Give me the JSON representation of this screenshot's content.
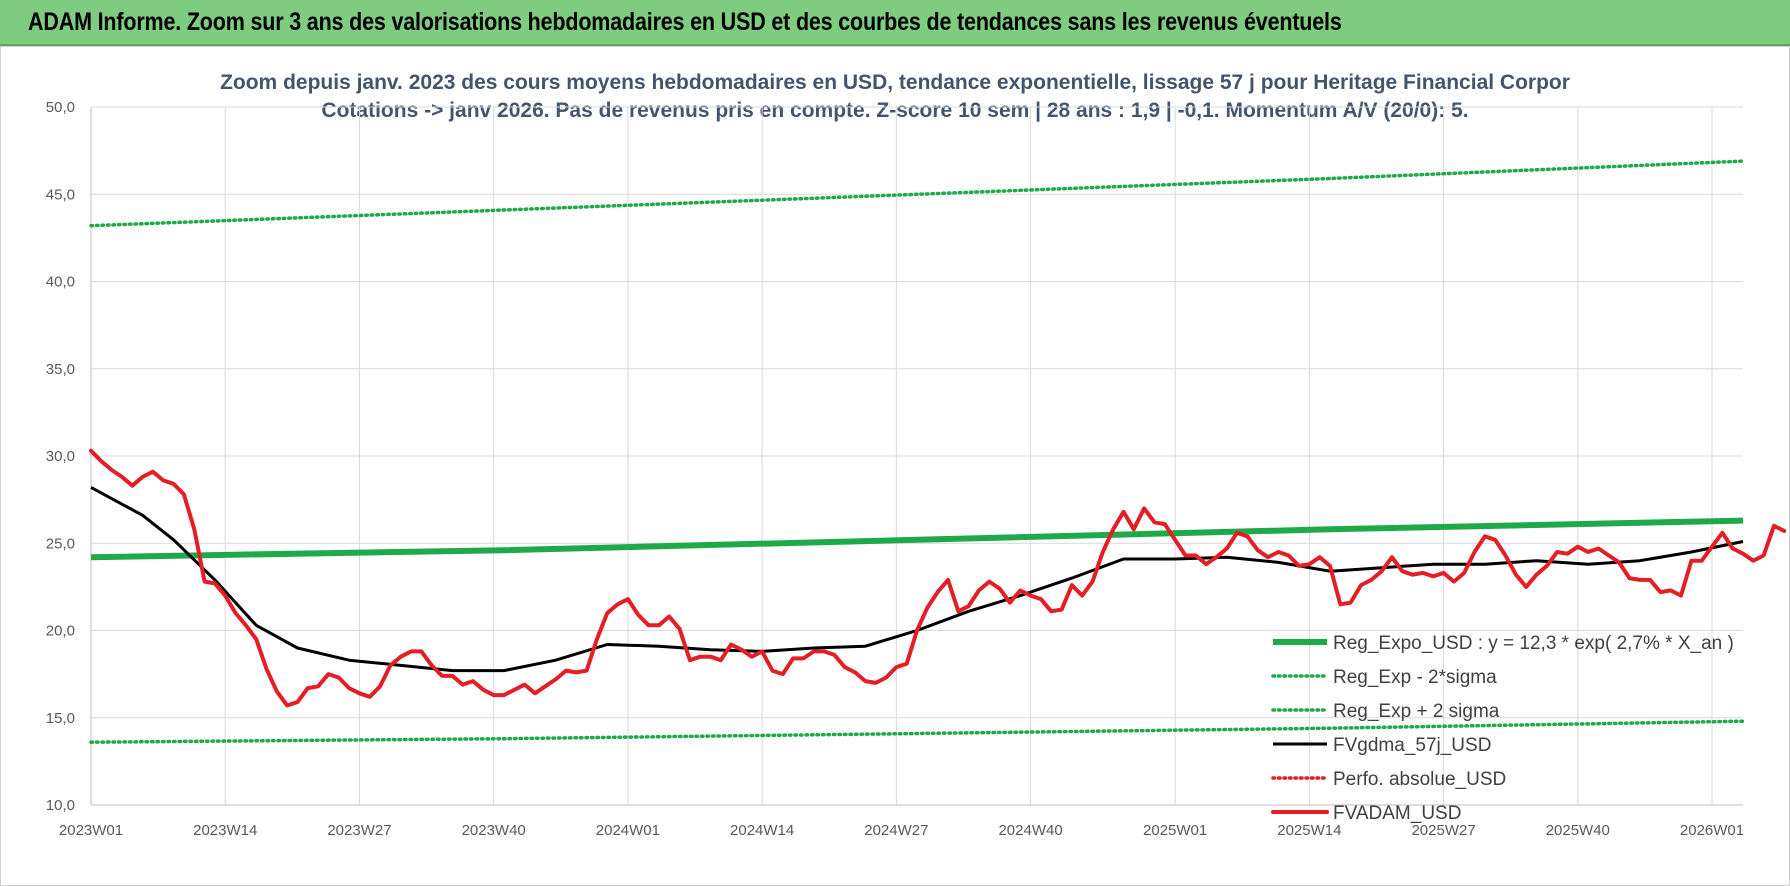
{
  "header": {
    "title": "ADAM Informe. Zoom sur 3 ans des valorisations hebdomadaires en USD et des courbes de tendances sans les revenus éventuels"
  },
  "chart_data": {
    "type": "line",
    "title_lines": [
      "Zoom depuis janv. 2023 des cours moyens hebdomadaires en USD, tendance exponentielle, lissage 57 j pour Heritage Financial Corpor",
      "Cotations -> janv 2026. Pas de revenus pris en compte. Z-score 10 sem | 28 ans : 1,9 | -0,1. Momentum A/V (20/0): 5."
    ],
    "ylim": [
      10,
      50
    ],
    "y_ticks": [
      "50,0",
      "45,0",
      "40,0",
      "35,0",
      "30,0",
      "25,0",
      "20,0",
      "15,0",
      "10,0"
    ],
    "y_tick_values": [
      50,
      45,
      40,
      35,
      30,
      25,
      20,
      15,
      10
    ],
    "x_range": [
      0,
      160
    ],
    "x_ticks": [
      {
        "label": "2023W01",
        "x": 0
      },
      {
        "label": "2023W14",
        "x": 13
      },
      {
        "label": "2023W27",
        "x": 26
      },
      {
        "label": "2023W40",
        "x": 39
      },
      {
        "label": "2024W01",
        "x": 52
      },
      {
        "label": "2024W14",
        "x": 65
      },
      {
        "label": "2024W27",
        "x": 78
      },
      {
        "label": "2024W40",
        "x": 91
      },
      {
        "label": "2025W01",
        "x": 105
      },
      {
        "label": "2025W14",
        "x": 118
      },
      {
        "label": "2025W27",
        "x": 131
      },
      {
        "label": "2025W40",
        "x": 144
      },
      {
        "label": "2026W01",
        "x": 157
      }
    ],
    "grid": true,
    "legend_position": "right",
    "series": [
      {
        "name": "Reg_Expo_USD : y = 12,3 * exp( 2,7% *  X_an )",
        "color": "#1faa4a",
        "style": "thick",
        "points": [
          [
            0,
            24.2
          ],
          [
            40,
            24.6
          ],
          [
            80,
            25.2
          ],
          [
            120,
            25.8
          ],
          [
            160,
            26.3
          ]
        ]
      },
      {
        "name": "Reg_Exp - 2*sigma",
        "color": "#1faa4a",
        "style": "dotted",
        "points": [
          [
            0,
            13.6
          ],
          [
            40,
            13.8
          ],
          [
            80,
            14.1
          ],
          [
            120,
            14.4
          ],
          [
            160,
            14.8
          ]
        ]
      },
      {
        "name": "Reg_Exp + 2 sigma",
        "color": "#1faa4a",
        "style": "dotted",
        "points": [
          [
            0,
            43.2
          ],
          [
            40,
            44.1
          ],
          [
            80,
            45.0
          ],
          [
            120,
            45.9
          ],
          [
            160,
            46.9
          ]
        ]
      },
      {
        "name": "FVgdma_57j_USD",
        "color": "#000000",
        "style": "solid",
        "points": [
          [
            0,
            28.2
          ],
          [
            5,
            26.6
          ],
          [
            8,
            25.2
          ],
          [
            12,
            22.9
          ],
          [
            16,
            20.3
          ],
          [
            20,
            19.0
          ],
          [
            25,
            18.3
          ],
          [
            30,
            18.0
          ],
          [
            35,
            17.7
          ],
          [
            40,
            17.7
          ],
          [
            45,
            18.3
          ],
          [
            50,
            19.2
          ],
          [
            55,
            19.1
          ],
          [
            60,
            18.9
          ],
          [
            65,
            18.8
          ],
          [
            70,
            19.0
          ],
          [
            75,
            19.1
          ],
          [
            80,
            20.0
          ],
          [
            85,
            21.1
          ],
          [
            90,
            22.0
          ],
          [
            95,
            23.0
          ],
          [
            100,
            24.1
          ],
          [
            105,
            24.1
          ],
          [
            110,
            24.2
          ],
          [
            115,
            23.9
          ],
          [
            120,
            23.4
          ],
          [
            125,
            23.6
          ],
          [
            130,
            23.8
          ],
          [
            135,
            23.8
          ],
          [
            140,
            24.0
          ],
          [
            145,
            23.8
          ],
          [
            150,
            24.0
          ],
          [
            155,
            24.5
          ],
          [
            160,
            25.1
          ]
        ]
      },
      {
        "name": "Perfo. absolue_USD",
        "color": "#e31e24",
        "style": "dotted",
        "points": []
      },
      {
        "name": "FVADAM_USD",
        "color": "#e31e24",
        "style": "solid-thick",
        "points": [
          [
            0,
            30.3
          ],
          [
            1,
            29.7
          ],
          [
            2,
            29.2
          ],
          [
            3,
            28.8
          ],
          [
            4,
            28.3
          ],
          [
            5,
            28.8
          ],
          [
            6,
            29.1
          ],
          [
            7,
            28.6
          ],
          [
            8,
            28.4
          ],
          [
            9,
            27.8
          ],
          [
            10,
            25.8
          ],
          [
            11,
            22.8
          ],
          [
            12,
            22.7
          ],
          [
            13,
            22.0
          ],
          [
            14,
            21.0
          ],
          [
            15,
            20.3
          ],
          [
            16,
            19.5
          ],
          [
            17,
            17.8
          ],
          [
            18,
            16.5
          ],
          [
            19,
            15.7
          ],
          [
            20,
            15.9
          ],
          [
            21,
            16.7
          ],
          [
            22,
            16.8
          ],
          [
            23,
            17.5
          ],
          [
            24,
            17.3
          ],
          [
            25,
            16.7
          ],
          [
            26,
            16.4
          ],
          [
            27,
            16.2
          ],
          [
            28,
            16.8
          ],
          [
            29,
            18.0
          ],
          [
            30,
            18.5
          ],
          [
            31,
            18.8
          ],
          [
            32,
            18.8
          ],
          [
            33,
            18.0
          ],
          [
            34,
            17.4
          ],
          [
            35,
            17.4
          ],
          [
            36,
            16.9
          ],
          [
            37,
            17.1
          ],
          [
            38,
            16.6
          ],
          [
            39,
            16.3
          ],
          [
            40,
            16.3
          ],
          [
            41,
            16.6
          ],
          [
            42,
            16.9
          ],
          [
            43,
            16.4
          ],
          [
            44,
            16.8
          ],
          [
            45,
            17.2
          ],
          [
            46,
            17.7
          ],
          [
            47,
            17.6
          ],
          [
            48,
            17.7
          ],
          [
            49,
            19.5
          ],
          [
            50,
            21.0
          ],
          [
            51,
            21.5
          ],
          [
            52,
            21.8
          ],
          [
            53,
            20.9
          ],
          [
            54,
            20.3
          ],
          [
            55,
            20.3
          ],
          [
            56,
            20.8
          ],
          [
            57,
            20.1
          ],
          [
            58,
            18.3
          ],
          [
            59,
            18.5
          ],
          [
            60,
            18.5
          ],
          [
            61,
            18.3
          ],
          [
            62,
            19.2
          ],
          [
            63,
            18.9
          ],
          [
            64,
            18.5
          ],
          [
            65,
            18.8
          ],
          [
            66,
            17.7
          ],
          [
            67,
            17.5
          ],
          [
            68,
            18.4
          ],
          [
            69,
            18.4
          ],
          [
            70,
            18.8
          ],
          [
            71,
            18.8
          ],
          [
            72,
            18.6
          ],
          [
            73,
            17.9
          ],
          [
            74,
            17.6
          ],
          [
            75,
            17.1
          ],
          [
            76,
            17.0
          ],
          [
            77,
            17.3
          ],
          [
            78,
            17.9
          ],
          [
            79,
            18.1
          ],
          [
            80,
            20.0
          ],
          [
            81,
            21.3
          ],
          [
            82,
            22.2
          ],
          [
            83,
            22.9
          ],
          [
            84,
            21.1
          ],
          [
            85,
            21.4
          ],
          [
            86,
            22.3
          ],
          [
            87,
            22.8
          ],
          [
            88,
            22.4
          ],
          [
            89,
            21.6
          ],
          [
            90,
            22.3
          ],
          [
            91,
            22.0
          ],
          [
            92,
            21.8
          ],
          [
            93,
            21.1
          ],
          [
            94,
            21.2
          ],
          [
            95,
            22.6
          ],
          [
            96,
            22.0
          ],
          [
            97,
            22.8
          ],
          [
            98,
            24.5
          ],
          [
            99,
            25.8
          ],
          [
            100,
            26.8
          ],
          [
            101,
            25.8
          ],
          [
            102,
            27.0
          ],
          [
            103,
            26.2
          ],
          [
            104,
            26.1
          ],
          [
            105,
            25.2
          ],
          [
            106,
            24.3
          ],
          [
            107,
            24.3
          ],
          [
            108,
            23.8
          ],
          [
            109,
            24.2
          ],
          [
            110,
            24.7
          ],
          [
            111,
            25.6
          ],
          [
            112,
            25.4
          ],
          [
            113,
            24.6
          ],
          [
            114,
            24.2
          ],
          [
            115,
            24.5
          ],
          [
            116,
            24.3
          ],
          [
            117,
            23.7
          ],
          [
            118,
            23.8
          ],
          [
            119,
            24.2
          ],
          [
            120,
            23.7
          ],
          [
            121,
            21.5
          ],
          [
            122,
            21.6
          ],
          [
            123,
            22.6
          ],
          [
            124,
            22.9
          ],
          [
            125,
            23.4
          ],
          [
            126,
            24.2
          ],
          [
            127,
            23.4
          ],
          [
            128,
            23.2
          ],
          [
            129,
            23.3
          ],
          [
            130,
            23.1
          ],
          [
            131,
            23.3
          ],
          [
            132,
            22.8
          ],
          [
            133,
            23.3
          ],
          [
            134,
            24.5
          ],
          [
            135,
            25.4
          ],
          [
            136,
            25.2
          ],
          [
            137,
            24.3
          ],
          [
            138,
            23.2
          ],
          [
            139,
            22.5
          ],
          [
            140,
            23.2
          ],
          [
            141,
            23.7
          ],
          [
            142,
            24.5
          ],
          [
            143,
            24.4
          ],
          [
            144,
            24.8
          ],
          [
            145,
            24.5
          ],
          [
            146,
            24.7
          ],
          [
            147,
            24.3
          ],
          [
            148,
            23.9
          ],
          [
            149,
            23.0
          ],
          [
            150,
            22.9
          ],
          [
            151,
            22.9
          ],
          [
            152,
            22.2
          ],
          [
            153,
            22.3
          ],
          [
            154,
            22.0
          ],
          [
            155,
            24.0
          ],
          [
            156,
            24.0
          ],
          [
            157,
            24.8
          ],
          [
            158,
            25.6
          ],
          [
            159,
            24.7
          ],
          [
            160,
            24.4
          ],
          [
            161,
            24.0
          ],
          [
            162,
            24.3
          ],
          [
            163,
            26.0
          ],
          [
            164,
            25.7
          ]
        ]
      }
    ]
  }
}
